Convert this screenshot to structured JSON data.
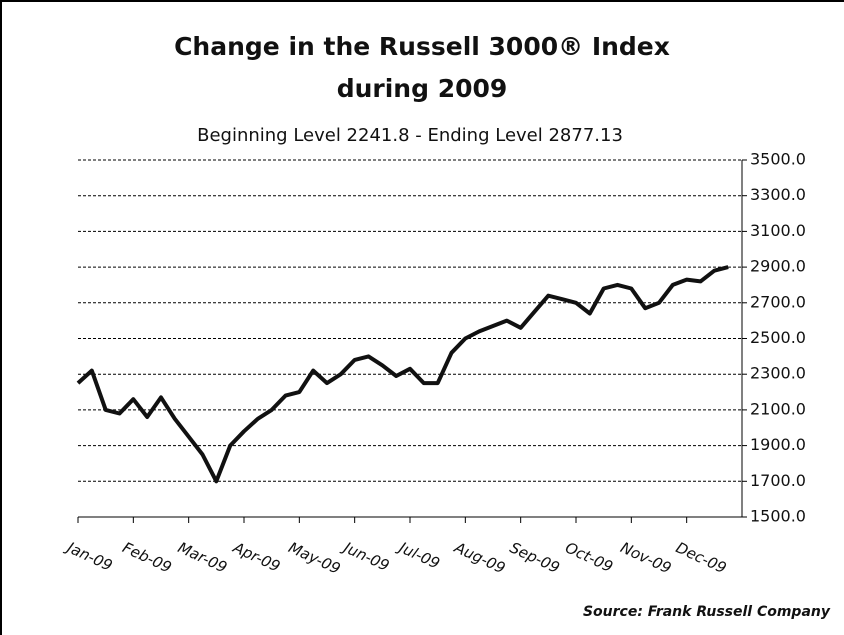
{
  "chart_data": {
    "type": "line",
    "title": [
      "Change in the Russell 3000® Index",
      "during 2009"
    ],
    "subtitle": "Beginning Level 2241.8 - Ending Level 2877.13",
    "source": "Source: Frank Russell Company",
    "categories": [
      "Jan-09",
      null,
      null,
      null,
      "Feb-09",
      null,
      null,
      null,
      "Mar-09",
      null,
      null,
      null,
      "Apr-09",
      null,
      null,
      null,
      "May-09",
      null,
      null,
      null,
      "Jun-09",
      null,
      null,
      null,
      "Jul-09",
      null,
      null,
      null,
      "Aug-09",
      null,
      null,
      null,
      "Sep-09",
      null,
      null,
      null,
      "Oct-09",
      null,
      null,
      null,
      "Nov-09",
      null,
      null,
      null,
      "Dec-09",
      null,
      null,
      null
    ],
    "series": [
      {
        "name": "Russell 3000",
        "color": "#111111",
        "values": [
          2250,
          2320,
          2100,
          2080,
          2160,
          2060,
          2170,
          2050,
          1950,
          1850,
          1700,
          1900,
          1980,
          2050,
          2100,
          2180,
          2200,
          2320,
          2250,
          2300,
          2380,
          2400,
          2350,
          2290,
          2330,
          2250,
          2250,
          2420,
          2500,
          2540,
          2570,
          2600,
          2560,
          2650,
          2740,
          2720,
          2700,
          2640,
          2780,
          2800,
          2780,
          2670,
          2700,
          2800,
          2830,
          2820,
          2880,
          2900
        ]
      }
    ],
    "ylim": [
      1500,
      3500
    ],
    "yticks": [
      {
        "value": 1500,
        "label": "1500.0"
      },
      {
        "value": 1700,
        "label": "1700.0"
      },
      {
        "value": 1900,
        "label": "1900.0"
      },
      {
        "value": 2100,
        "label": "2100.0"
      },
      {
        "value": 2300,
        "label": "2300.0"
      },
      {
        "value": 2500,
        "label": "2500.0"
      },
      {
        "value": 2700,
        "label": "2700.0"
      },
      {
        "value": 2900,
        "label": "2900.0"
      },
      {
        "value": 3100,
        "label": "3100.0"
      },
      {
        "value": 3300,
        "label": "3300.0"
      },
      {
        "value": 3500,
        "label": "3500.0"
      }
    ],
    "grid": true
  }
}
